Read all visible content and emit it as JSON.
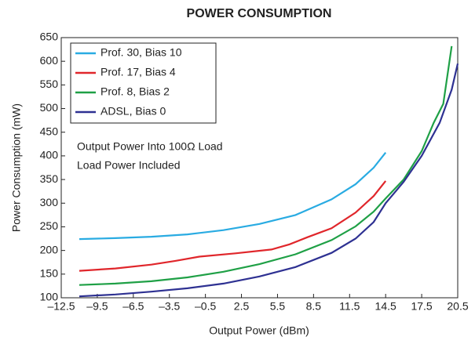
{
  "chart_data": {
    "type": "line",
    "title": "POWER CONSUMPTION",
    "xlabel": "Output Power (dBm)",
    "ylabel": "Power Consumption (mW)",
    "annotations": [
      "Output Power Into 100Ω Load",
      "Load Power Included"
    ],
    "xlim": [
      -12.5,
      20.5
    ],
    "xticks": [
      {
        "value": -12.5,
        "label": "–12.5"
      },
      {
        "value": -9.5,
        "label": "–9.5"
      },
      {
        "value": -6.5,
        "label": "–6.5"
      },
      {
        "value": -3.5,
        "label": "–3.5"
      },
      {
        "value": -0.5,
        "label": "–0.5"
      },
      2.5,
      5.5,
      8.5,
      11.5,
      14.5,
      17.5,
      20.5
    ],
    "ylim": [
      100,
      650
    ],
    "yticks": [
      100,
      150,
      200,
      250,
      300,
      350,
      400,
      450,
      500,
      550,
      600,
      650
    ],
    "legend": "upper left",
    "series": [
      {
        "name": "Prof. 30, Bias 10",
        "color": "#29abe2",
        "x": [
          -11,
          -8,
          -5,
          -2,
          1,
          4,
          7,
          10,
          12,
          13.5,
          14.5
        ],
        "values": [
          224,
          226,
          229,
          234,
          243,
          256,
          275,
          308,
          340,
          375,
          407
        ]
      },
      {
        "name": "Prof. 17, Bias 4",
        "color": "#e0262b",
        "x": [
          -11,
          -8,
          -5,
          -3,
          -1,
          2,
          5,
          6.5,
          8,
          10,
          12,
          13.5,
          14.5
        ],
        "values": [
          157,
          162,
          170,
          178,
          187,
          194,
          202,
          213,
          228,
          247,
          280,
          315,
          347
        ]
      },
      {
        "name": "Prof. 8, Bias 2",
        "color": "#1fa046",
        "x": [
          -11,
          -8,
          -5,
          -2,
          1,
          4,
          7,
          10,
          12,
          13.5,
          14.5,
          16,
          17.5,
          18.5,
          19.3,
          20
        ],
        "values": [
          127,
          130,
          135,
          143,
          155,
          171,
          192,
          222,
          251,
          282,
          310,
          350,
          410,
          470,
          510,
          632
        ]
      },
      {
        "name": "ADSL, Bias 0",
        "color": "#2e3192",
        "x": [
          -11,
          -8,
          -5,
          -2,
          1,
          4,
          7,
          10,
          12,
          13.5,
          14.5,
          16,
          17.5,
          19,
          20,
          20.5
        ],
        "values": [
          103,
          107,
          113,
          120,
          130,
          145,
          165,
          195,
          225,
          260,
          300,
          345,
          400,
          470,
          540,
          595
        ]
      }
    ]
  }
}
